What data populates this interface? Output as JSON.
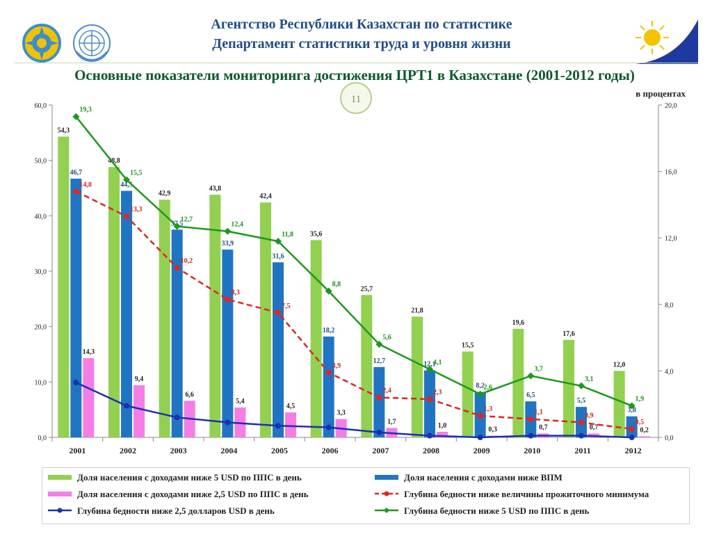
{
  "header": {
    "agency_line1": "Агентство Республики Казахстан по статистике",
    "agency_line2": "Департамент статистики труда и уровня жизни",
    "title": "Основные показатели мониторинга достижения ЦРТ1 в Казахстане (2001-2012 годы)",
    "page_number": "11",
    "unit": "в процентах"
  },
  "icons": [
    "kazakhstan-emblem-icon",
    "un-emblem-icon",
    "sun-logo-icon"
  ],
  "colors": {
    "green_bar": "#92d050",
    "blue_bar": "#1f75c4",
    "pink_bar": "#f47ee6",
    "red_line": "#e8221c",
    "navy_line": "#1c2fb0",
    "green_line": "#1a9a1a",
    "title_green": "#0a5a2a",
    "header_blue": "#1f4e8c"
  },
  "chart_data": {
    "type": "bar",
    "categories": [
      "2001",
      "2002",
      "2003",
      "2004",
      "2005",
      "2006",
      "2007",
      "2008",
      "2009",
      "2010",
      "2011",
      "2012"
    ],
    "ylim_left": [
      0,
      60
    ],
    "yticks_left": [
      "0,0",
      "10,0",
      "20,0",
      "30,0",
      "40,0",
      "50,0",
      "60,0"
    ],
    "ylim_right": [
      0,
      20
    ],
    "yticks_right": [
      "0,0",
      "4,0",
      "8,0",
      "12,0",
      "16,0",
      "20,0"
    ],
    "grid": false,
    "series": [
      {
        "name": "Доля населения с доходами ниже 5 USD по ППС в  день",
        "kind": "bar",
        "axis": "left",
        "color": "#92d050",
        "values": [
          54.3,
          48.8,
          42.9,
          43.8,
          42.4,
          35.6,
          25.7,
          21.8,
          15.5,
          19.6,
          17.6,
          12.0
        ],
        "labels": [
          "54,3",
          "48,8",
          "42,9",
          "43,8",
          "42,4",
          "35,6",
          "25,7",
          "21,8",
          "15,5",
          "19,6",
          "17,6",
          "12,0"
        ]
      },
      {
        "name": "Доля населения с доходами ниже ВПМ",
        "kind": "bar",
        "axis": "left",
        "color": "#1f75c4",
        "values": [
          46.7,
          44.5,
          37.5,
          33.9,
          31.6,
          18.2,
          12.7,
          12.1,
          8.2,
          6.5,
          5.5,
          3.8
        ],
        "labels": [
          "46,7",
          "44,5",
          "37,5",
          "33,9",
          "31,6",
          "18,2",
          "12,7",
          "12,1",
          "8,2",
          "6,5",
          "5,5",
          "3,8"
        ]
      },
      {
        "name": "Доля населения с доходами ниже 2,5 USD по ППС в  день",
        "kind": "bar",
        "axis": "left",
        "color": "#f47ee6",
        "values": [
          14.3,
          9.4,
          6.6,
          5.4,
          4.5,
          3.3,
          1.7,
          1.0,
          0.3,
          0.7,
          0.7,
          0.2
        ],
        "labels": [
          "14,3",
          "9,4",
          "6,6",
          "5,4",
          "4,5",
          "3,3",
          "1,7",
          "1,0",
          "0,3",
          "0,7",
          "0,7",
          "0,2"
        ]
      },
      {
        "name": "Глубина бедности ниже величины прожиточного минимума",
        "kind": "line",
        "style": "dashed",
        "axis": "right",
        "color": "#e8221c",
        "values": [
          14.8,
          13.3,
          10.2,
          8.3,
          7.5,
          3.9,
          2.4,
          2.3,
          1.3,
          1.1,
          0.9,
          0.5
        ],
        "labels": [
          "14,8",
          "13,3",
          "10,2",
          "8,3",
          "7,5",
          "3,9",
          "2,4",
          "2,3",
          "1,3",
          "1,1",
          "0,9",
          "0,5"
        ]
      },
      {
        "name": "Глубина бедности ниже 2,5 долларов USD в  день",
        "kind": "line",
        "style": "solid",
        "axis": "right",
        "color": "#1c2fb0",
        "values": [
          3.3,
          1.9,
          1.2,
          0.9,
          0.7,
          0.6,
          0.3,
          0.1,
          0.0,
          0.1,
          0.1,
          0.0
        ],
        "labels": [
          "",
          "",
          "",
          "",
          "",
          "",
          "",
          "",
          "",
          "",
          "",
          ""
        ]
      },
      {
        "name": "Глубина бедности ниже 5 USD по ППС в  день",
        "kind": "line",
        "style": "solid",
        "axis": "right",
        "color": "#1a9a1a",
        "values": [
          19.3,
          15.5,
          12.7,
          12.4,
          11.8,
          8.8,
          5.6,
          4.1,
          2.6,
          3.7,
          3.1,
          1.9
        ],
        "labels": [
          "19,3",
          "15,5",
          "12,7",
          "12,4",
          "11,8",
          "8,8",
          "5,6",
          "4,1",
          "2,6",
          "3,7",
          "3,1",
          "1,9"
        ]
      }
    ]
  }
}
